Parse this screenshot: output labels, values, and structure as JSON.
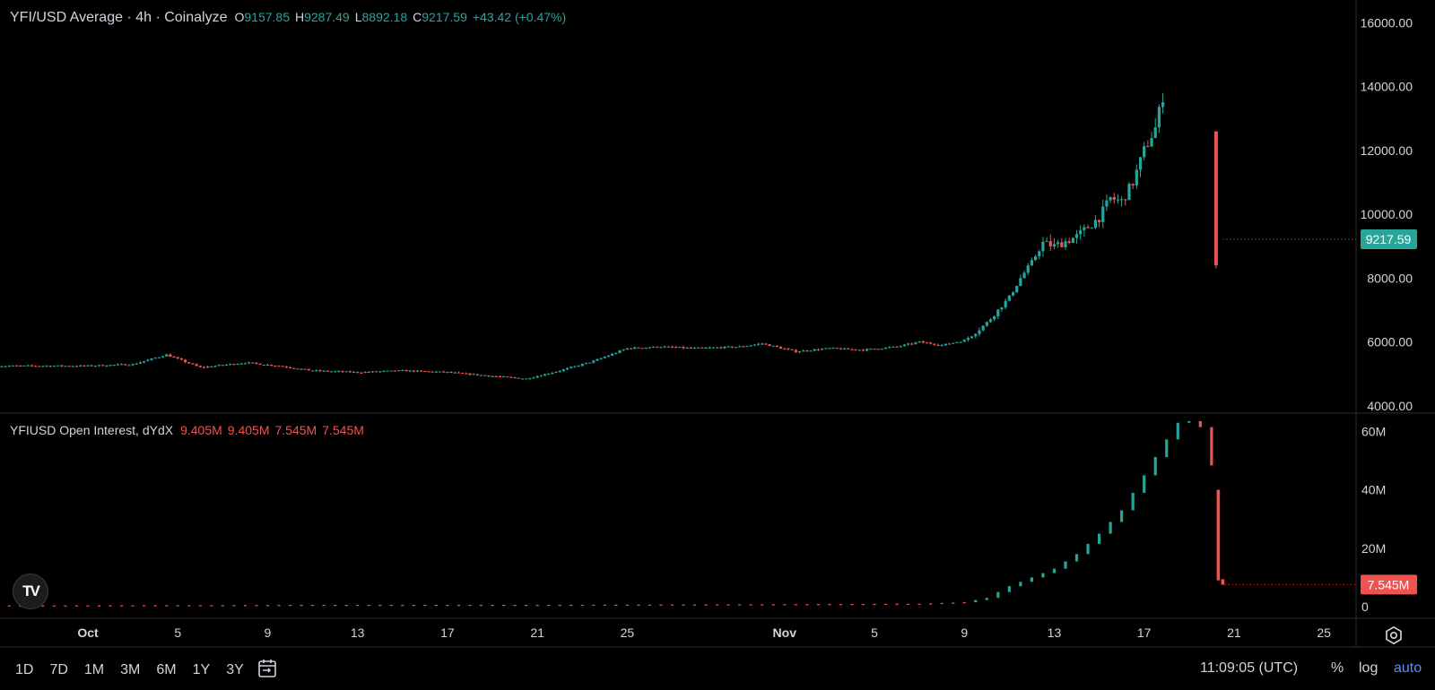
{
  "header": {
    "title": "YFI/USD Average · 4h · Coinalyze",
    "o_label": "O",
    "o_value": "9157.85",
    "h_label": "H",
    "h_value": "9287.49",
    "l_label": "L",
    "l_value": "8892.18",
    "c_label": "C",
    "c_value": "9217.59",
    "change": "+43.42 (+0.47%)"
  },
  "oi_header": {
    "title": "YFIUSD Open Interest, dYdX",
    "v1": "9.405M",
    "v2": "9.405M",
    "v3": "7.545M",
    "v4": "7.545M"
  },
  "price_axis": {
    "ticks": [
      {
        "v": 16000,
        "label": "16000.00"
      },
      {
        "v": 14000,
        "label": "14000.00"
      },
      {
        "v": 12000,
        "label": "12000.00"
      },
      {
        "v": 10000,
        "label": "10000.00"
      },
      {
        "v": 8000,
        "label": "8000.00"
      },
      {
        "v": 6000,
        "label": "6000.00"
      },
      {
        "v": 4000,
        "label": "4000.00"
      }
    ],
    "last_label": "9217.59"
  },
  "oi_axis": {
    "ticks": [
      {
        "v": 60,
        "label": "60M"
      },
      {
        "v": 40,
        "label": "40M"
      },
      {
        "v": 20,
        "label": "20M"
      },
      {
        "v": 0,
        "label": "0"
      }
    ],
    "last_label": "7.545M"
  },
  "time_axis": {
    "ticks": [
      {
        "d": 0,
        "label": "Oct"
      },
      {
        "d": 4,
        "label": "5"
      },
      {
        "d": 8,
        "label": "9"
      },
      {
        "d": 12,
        "label": "13"
      },
      {
        "d": 16,
        "label": "17"
      },
      {
        "d": 20,
        "label": "21"
      },
      {
        "d": 24,
        "label": "25"
      },
      {
        "d": 31,
        "label": "Nov"
      },
      {
        "d": 35,
        "label": "5"
      },
      {
        "d": 39,
        "label": "9"
      },
      {
        "d": 43,
        "label": "13"
      },
      {
        "d": 47,
        "label": "17"
      },
      {
        "d": 51,
        "label": "21"
      },
      {
        "d": 55,
        "label": "25"
      }
    ]
  },
  "toolbar": {
    "timeframes": [
      "1D",
      "7D",
      "1M",
      "3M",
      "6M",
      "1Y",
      "3Y"
    ],
    "clock": "11:09:05 (UTC)",
    "percent": "%",
    "log": "log",
    "auto": "auto"
  },
  "colors": {
    "up": "#26a69a",
    "down": "#ef5350",
    "grid": "#2a2e39",
    "text": "#d1d4dc",
    "accent": "#2962ff"
  },
  "chart_data": [
    {
      "type": "candlestick",
      "title": "YFI/USD Average · 4h · Coinalyze",
      "x_unit": "date (Oct 1 to Nov 18)",
      "ylim": [
        3800,
        16600
      ],
      "series": [
        {
          "name": "YFI/USD Average",
          "points": [
            {
              "d": 0,
              "v": 5250
            },
            {
              "d": 2,
              "v": 5300
            },
            {
              "d": 3.5,
              "v": 5600
            },
            {
              "d": 5,
              "v": 5200
            },
            {
              "d": 7,
              "v": 5350
            },
            {
              "d": 8.5,
              "v": 5250
            },
            {
              "d": 10,
              "v": 5100
            },
            {
              "d": 12,
              "v": 5050
            },
            {
              "d": 14,
              "v": 5100
            },
            {
              "d": 16,
              "v": 5050
            },
            {
              "d": 18.5,
              "v": 4900
            },
            {
              "d": 19.5,
              "v": 4850
            },
            {
              "d": 21,
              "v": 5100
            },
            {
              "d": 22.5,
              "v": 5400
            },
            {
              "d": 24,
              "v": 5800
            },
            {
              "d": 25.5,
              "v": 5850
            },
            {
              "d": 27,
              "v": 5800
            },
            {
              "d": 29,
              "v": 5850
            },
            {
              "d": 30,
              "v": 5950
            },
            {
              "d": 31.5,
              "v": 5700
            },
            {
              "d": 33,
              "v": 5800
            },
            {
              "d": 34.5,
              "v": 5750
            },
            {
              "d": 36,
              "v": 5850
            },
            {
              "d": 37,
              "v": 6000
            },
            {
              "d": 38,
              "v": 5900
            },
            {
              "d": 39,
              "v": 6050
            },
            {
              "d": 39.5,
              "v": 6300
            },
            {
              "d": 40,
              "v": 6600
            },
            {
              "d": 41,
              "v": 7400
            },
            {
              "d": 41.5,
              "v": 8000
            },
            {
              "d": 42,
              "v": 8500
            },
            {
              "d": 42.5,
              "v": 9100
            },
            {
              "d": 43,
              "v": 9000
            },
            {
              "d": 44,
              "v": 9300
            },
            {
              "d": 45,
              "v": 9900
            },
            {
              "d": 45.5,
              "v": 10500
            },
            {
              "d": 46,
              "v": 10400
            },
            {
              "d": 46.5,
              "v": 11000
            },
            {
              "d": 47,
              "v": 12000
            },
            {
              "d": 47.5,
              "v": 12700
            },
            {
              "d": 48,
              "v": 14200
            },
            {
              "d": 48.3,
              "v": 14500
            },
            {
              "d": 48.6,
              "v": 14000
            },
            {
              "d": 48.8,
              "v": 14400
            },
            {
              "d": 49.1,
              "v": 13600
            },
            {
              "d": 49.4,
              "v": 14300
            },
            {
              "d": 49.6,
              "v": 14500
            },
            {
              "d": 49.9,
              "v": 14200
            },
            {
              "d": 50.1,
              "v": 12500
            },
            {
              "d": 50.3,
              "v": 9200
            },
            {
              "d": 50.5,
              "v": 9217.59
            }
          ]
        }
      ]
    },
    {
      "type": "bar",
      "title": "YFIUSD Open Interest, dYdX",
      "unit": "M",
      "x_unit": "date (Oct 1 to Nov 18)",
      "ylim": [
        -4,
        66
      ],
      "series": [
        {
          "name": "YFIUSD Open Interest",
          "points": [
            {
              "d": 0,
              "v": 0.4
            },
            {
              "d": 10,
              "v": 0.6
            },
            {
              "d": 20,
              "v": 0.6
            },
            {
              "d": 30,
              "v": 0.8
            },
            {
              "d": 37,
              "v": 1.0
            },
            {
              "d": 39,
              "v": 1.5
            },
            {
              "d": 40,
              "v": 3
            },
            {
              "d": 41,
              "v": 7
            },
            {
              "d": 42,
              "v": 10
            },
            {
              "d": 43,
              "v": 13
            },
            {
              "d": 44,
              "v": 18
            },
            {
              "d": 45,
              "v": 25
            },
            {
              "d": 46,
              "v": 33
            },
            {
              "d": 47,
              "v": 45
            },
            {
              "d": 47.8,
              "v": 55
            },
            {
              "d": 48.5,
              "v": 63
            },
            {
              "d": 49.4,
              "v": 64
            },
            {
              "d": 49.8,
              "v": 54
            },
            {
              "d": 50.3,
              "v": 40
            },
            {
              "d": 50.5,
              "v": 7.545
            }
          ]
        }
      ]
    }
  ]
}
